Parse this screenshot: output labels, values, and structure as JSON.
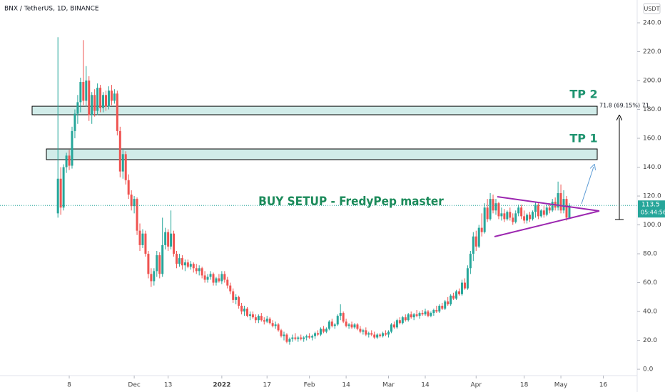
{
  "chart_data": {
    "type": "candlestick",
    "title": "BNX / TetherUS, 1D, BINANCE",
    "currency_button": "USDT",
    "up_color": "#26a69a",
    "down_color": "#ef5350",
    "grid": false,
    "ylim": [
      -4.4,
      255.8
    ],
    "yticks": [
      {
        "value": 0,
        "label": "0.0"
      },
      {
        "value": 20,
        "label": "20.0"
      },
      {
        "value": 40,
        "label": "40.0"
      },
      {
        "value": 60,
        "label": "60.0"
      },
      {
        "value": 80,
        "label": "80.0"
      },
      {
        "value": 100,
        "label": "100.0"
      },
      {
        "value": 120,
        "label": "120.0"
      },
      {
        "value": 140,
        "label": "140.0"
      },
      {
        "value": 160,
        "label": "160.0"
      },
      {
        "value": 180,
        "label": "180.0"
      },
      {
        "value": 200,
        "label": "200.0"
      },
      {
        "value": 220,
        "label": "220.0"
      },
      {
        "value": 240,
        "label": "240.0"
      }
    ],
    "xlim": [
      -20.5,
      205
    ],
    "xticks": [
      {
        "value": 4,
        "label": "8"
      },
      {
        "value": 27,
        "label": "Dec"
      },
      {
        "value": 39,
        "label": "13"
      },
      {
        "value": 58,
        "label": "2022"
      },
      {
        "value": 74,
        "label": "17"
      },
      {
        "value": 89,
        "label": "Feb"
      },
      {
        "value": 102,
        "label": "14"
      },
      {
        "value": 117,
        "label": "Mar"
      },
      {
        "value": 130,
        "label": "14"
      },
      {
        "value": 148,
        "label": "Apr"
      },
      {
        "value": 165,
        "label": "18"
      },
      {
        "value": 178,
        "label": "May"
      },
      {
        "value": 193,
        "label": "16"
      }
    ],
    "last_price": 113.5,
    "countdown": "05:44:56",
    "annotation": "BUY SETUP - FredyPep master",
    "measure_label": "71.8 (69.15%) 71",
    "zones": [
      {
        "label": "TP 2",
        "top": 182.2,
        "bottom": 176.3
      },
      {
        "label": "TP 1",
        "top": 152.6,
        "bottom": 145.2
      }
    ],
    "ohlc": [
      [
        108,
        230,
        105,
        132
      ],
      [
        132,
        140,
        107,
        112
      ],
      [
        112,
        142,
        110,
        140
      ],
      [
        140,
        150,
        136,
        148
      ],
      [
        148,
        152,
        138,
        141
      ],
      [
        141,
        168,
        139,
        165
      ],
      [
        165,
        180,
        160,
        177
      ],
      [
        177,
        190,
        170,
        185
      ],
      [
        185,
        202,
        178,
        199
      ],
      [
        199,
        228,
        183,
        186
      ],
      [
        186,
        210,
        182,
        200
      ],
      [
        200,
        203,
        172,
        176
      ],
      [
        176,
        192,
        170,
        190
      ],
      [
        190,
        194,
        175,
        179
      ],
      [
        179,
        198,
        176,
        195
      ],
      [
        195,
        197,
        178,
        181
      ],
      [
        181,
        192,
        178,
        190
      ],
      [
        190,
        193,
        179,
        182
      ],
      [
        182,
        196,
        180,
        193
      ],
      [
        193,
        197,
        183,
        186
      ],
      [
        186,
        194,
        184,
        191
      ],
      [
        191,
        193,
        162,
        165
      ],
      [
        165,
        168,
        133,
        137
      ],
      [
        137,
        152,
        132,
        149
      ],
      [
        149,
        151,
        128,
        131
      ],
      [
        131,
        135,
        118,
        121
      ],
      [
        121,
        124,
        110,
        113
      ],
      [
        113,
        120,
        108,
        118
      ],
      [
        118,
        119,
        93,
        96
      ],
      [
        96,
        101,
        82,
        86
      ],
      [
        86,
        97,
        84,
        94
      ],
      [
        94,
        96,
        78,
        80
      ],
      [
        80,
        82,
        63,
        66
      ],
      [
        66,
        70,
        57,
        61
      ],
      [
        61,
        70,
        58,
        68
      ],
      [
        68,
        82,
        64,
        79
      ],
      [
        79,
        81,
        63,
        66
      ],
      [
        66,
        105,
        64,
        86
      ],
      [
        86,
        98,
        83,
        95
      ],
      [
        95,
        97,
        82,
        85
      ],
      [
        85,
        110,
        83,
        94
      ],
      [
        94,
        96,
        78,
        80
      ],
      [
        80,
        82,
        70,
        73
      ],
      [
        73,
        80,
        71,
        77
      ],
      [
        77,
        79,
        69,
        72
      ],
      [
        72,
        76,
        68,
        74
      ],
      [
        74,
        76,
        70,
        71
      ],
      [
        71,
        75,
        69,
        73
      ],
      [
        73,
        74,
        67,
        70
      ],
      [
        70,
        73,
        66,
        68
      ],
      [
        68,
        72,
        65,
        70
      ],
      [
        70,
        71,
        63,
        65
      ],
      [
        65,
        68,
        60,
        62
      ],
      [
        62,
        66,
        60,
        64
      ],
      [
        64,
        68,
        62,
        66
      ],
      [
        66,
        67,
        58,
        60
      ],
      [
        60,
        64,
        58,
        63
      ],
      [
        63,
        66,
        60,
        61
      ],
      [
        61,
        68,
        59,
        66
      ],
      [
        66,
        68,
        60,
        62
      ],
      [
        62,
        64,
        56,
        58
      ],
      [
        58,
        60,
        52,
        54
      ],
      [
        54,
        56,
        46,
        48
      ],
      [
        48,
        52,
        45,
        50
      ],
      [
        50,
        51,
        42,
        44
      ],
      [
        44,
        46,
        38,
        40
      ],
      [
        40,
        44,
        37,
        42
      ],
      [
        42,
        43,
        36,
        37
      ],
      [
        37,
        40,
        34,
        38
      ],
      [
        38,
        40,
        35,
        36
      ],
      [
        36,
        38,
        32,
        34
      ],
      [
        34,
        38,
        32,
        37
      ],
      [
        37,
        39,
        33,
        34
      ],
      [
        34,
        36,
        31,
        33
      ],
      [
        33,
        37,
        32,
        35
      ],
      [
        35,
        36,
        31,
        32
      ],
      [
        32,
        34,
        29,
        30
      ],
      [
        30,
        33,
        28,
        31
      ],
      [
        31,
        32,
        26,
        27
      ],
      [
        27,
        28,
        22,
        23
      ],
      [
        23,
        26,
        20,
        24
      ],
      [
        24,
        25,
        18,
        19
      ],
      [
        19,
        22,
        17,
        21
      ],
      [
        21,
        24,
        19,
        22
      ],
      [
        22,
        25,
        20,
        21
      ],
      [
        21,
        23,
        19,
        22
      ],
      [
        22,
        24,
        20,
        21
      ],
      [
        21,
        23,
        19,
        22
      ],
      [
        22,
        24,
        20,
        23
      ],
      [
        23,
        25,
        21,
        22
      ],
      [
        22,
        24,
        20,
        23
      ],
      [
        23,
        26,
        21,
        25
      ],
      [
        25,
        27,
        23,
        24
      ],
      [
        24,
        29,
        23,
        28
      ],
      [
        28,
        30,
        25,
        26
      ],
      [
        26,
        29,
        25,
        28
      ],
      [
        28,
        34,
        27,
        33
      ],
      [
        33,
        35,
        29,
        30
      ],
      [
        30,
        32,
        28,
        31
      ],
      [
        31,
        38,
        30,
        37
      ],
      [
        37,
        45,
        34,
        39
      ],
      [
        39,
        40,
        32,
        33
      ],
      [
        33,
        35,
        29,
        30
      ],
      [
        30,
        32,
        28,
        31
      ],
      [
        31,
        33,
        28,
        29
      ],
      [
        29,
        32,
        28,
        31
      ],
      [
        31,
        32,
        27,
        28
      ],
      [
        28,
        30,
        25,
        26
      ],
      [
        26,
        28,
        24,
        27
      ],
      [
        27,
        29,
        23,
        24
      ],
      [
        24,
        26,
        22,
        25
      ],
      [
        25,
        27,
        23,
        24
      ],
      [
        24,
        26,
        21,
        22
      ],
      [
        22,
        25,
        21,
        24
      ],
      [
        24,
        25,
        22,
        23
      ],
      [
        23,
        26,
        22,
        25
      ],
      [
        25,
        27,
        23,
        24
      ],
      [
        24,
        27,
        22,
        26
      ],
      [
        26,
        32,
        25,
        31
      ],
      [
        31,
        33,
        28,
        29
      ],
      [
        29,
        35,
        28,
        34
      ],
      [
        34,
        36,
        31,
        32
      ],
      [
        32,
        37,
        31,
        36
      ],
      [
        36,
        38,
        33,
        34
      ],
      [
        34,
        39,
        33,
        38
      ],
      [
        38,
        40,
        35,
        36
      ],
      [
        36,
        39,
        34,
        38
      ],
      [
        38,
        41,
        36,
        37
      ],
      [
        37,
        40,
        35,
        39
      ],
      [
        39,
        41,
        37,
        38
      ],
      [
        38,
        42,
        37,
        40
      ],
      [
        40,
        41,
        36,
        37
      ],
      [
        37,
        40,
        36,
        39
      ],
      [
        39,
        42,
        37,
        41
      ],
      [
        41,
        44,
        39,
        40
      ],
      [
        40,
        45,
        39,
        44
      ],
      [
        44,
        46,
        41,
        42
      ],
      [
        42,
        48,
        41,
        47
      ],
      [
        47,
        50,
        44,
        45
      ],
      [
        45,
        52,
        44,
        51
      ],
      [
        51,
        53,
        48,
        49
      ],
      [
        49,
        55,
        48,
        54
      ],
      [
        54,
        56,
        51,
        52
      ],
      [
        52,
        62,
        51,
        60
      ],
      [
        60,
        63,
        55,
        56
      ],
      [
        56,
        72,
        55,
        70
      ],
      [
        70,
        82,
        66,
        80
      ],
      [
        80,
        95,
        75,
        92
      ],
      [
        92,
        96,
        82,
        85
      ],
      [
        85,
        100,
        84,
        98
      ],
      [
        98,
        108,
        92,
        95
      ],
      [
        95,
        115,
        94,
        112
      ],
      [
        112,
        118,
        102,
        104
      ],
      [
        104,
        122,
        103,
        118
      ],
      [
        118,
        121,
        108,
        110
      ],
      [
        110,
        118,
        107,
        115
      ],
      [
        115,
        116,
        104,
        106
      ],
      [
        106,
        112,
        103,
        108
      ],
      [
        108,
        111,
        102,
        104
      ],
      [
        104,
        110,
        103,
        109
      ],
      [
        109,
        112,
        103,
        105
      ],
      [
        105,
        108,
        100,
        102
      ],
      [
        102,
        110,
        101,
        108
      ],
      [
        108,
        114,
        106,
        112
      ],
      [
        112,
        114,
        104,
        106
      ],
      [
        106,
        110,
        101,
        103
      ],
      [
        103,
        108,
        101,
        107
      ],
      [
        107,
        109,
        102,
        104
      ],
      [
        104,
        110,
        103,
        109
      ],
      [
        109,
        116,
        105,
        114
      ],
      [
        114,
        115,
        104,
        106
      ],
      [
        106,
        111,
        105,
        110
      ],
      [
        110,
        113,
        105,
        107
      ],
      [
        107,
        114,
        106,
        112
      ],
      [
        112,
        115,
        108,
        110
      ],
      [
        110,
        118,
        109,
        116
      ],
      [
        116,
        119,
        110,
        112
      ],
      [
        112,
        130,
        110,
        122
      ],
      [
        122,
        128,
        108,
        110
      ],
      [
        110,
        124,
        108,
        118
      ],
      [
        118,
        120,
        103,
        105
      ],
      [
        105,
        115,
        104,
        113.5
      ]
    ]
  }
}
